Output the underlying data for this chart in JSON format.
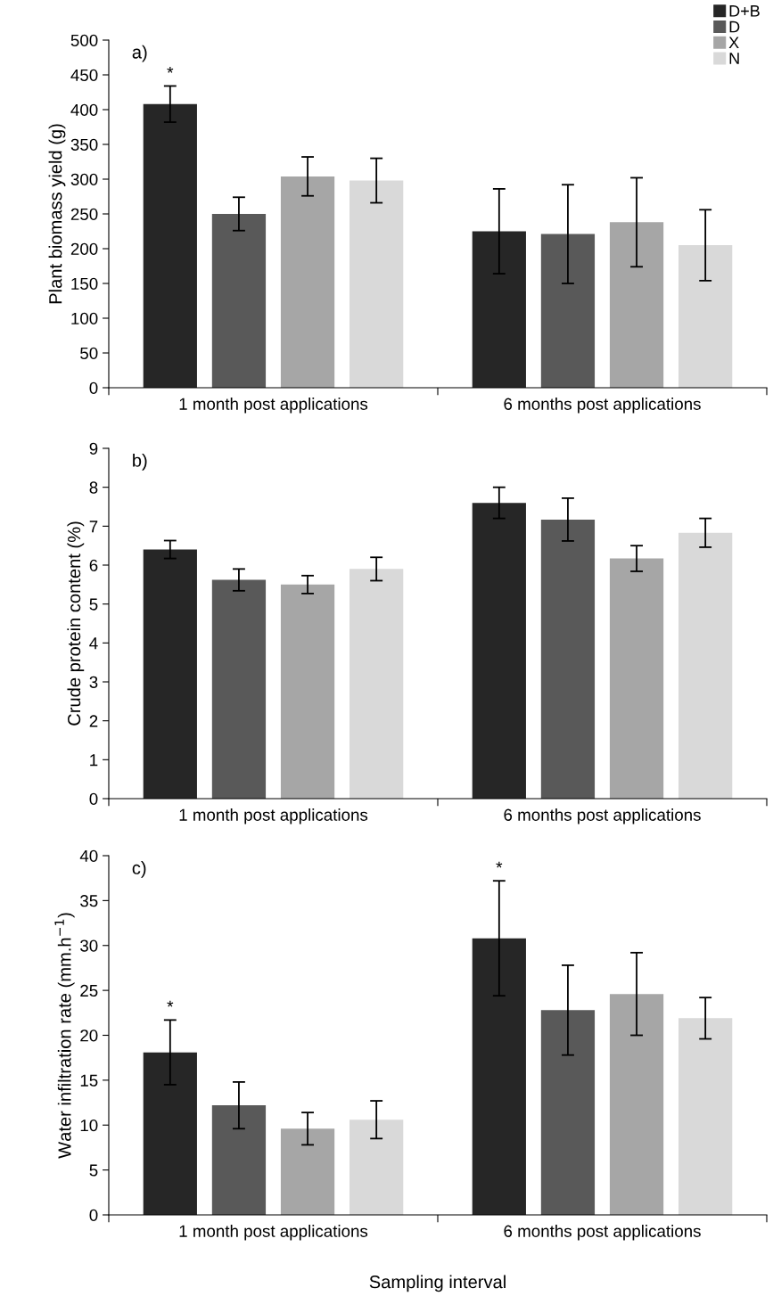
{
  "chart_data": [
    {
      "type": "bar",
      "ylabel": "Plant biomass yield (g)",
      "categories": [
        "1 month post applications",
        "6 months post applications"
      ],
      "ylim": [
        0,
        500
      ],
      "yticks": [
        0,
        50,
        100,
        150,
        200,
        250,
        300,
        350,
        400,
        450,
        500
      ],
      "legend": "top right",
      "grid": false,
      "series": [
        {
          "name": "D+B",
          "color": "#262626",
          "values": [
            408,
            225
          ],
          "errors": [
            26,
            61
          ]
        },
        {
          "name": "D",
          "color": "#595959",
          "values": [
            250,
            221
          ],
          "errors": [
            24,
            71
          ]
        },
        {
          "name": "X",
          "color": "#a6a6a6",
          "values": [
            304,
            238
          ],
          "errors": [
            28,
            64
          ]
        },
        {
          "name": "N",
          "color": "#d9d9d9",
          "values": [
            298,
            205
          ],
          "errors": [
            32,
            51
          ]
        }
      ],
      "annotations": [
        "a)",
        "*"
      ]
    },
    {
      "type": "bar",
      "ylabel": "Crude protein content (%)",
      "categories": [
        "1 month post applications",
        "6 months post applications"
      ],
      "ylim": [
        0,
        9
      ],
      "yticks": [
        0,
        1,
        2,
        3,
        4,
        5,
        6,
        7,
        8,
        9
      ],
      "legend": false,
      "grid": false,
      "series": [
        {
          "color": "#262626",
          "values": [
            6.4,
            7.6
          ],
          "errors": [
            0.23,
            0.4
          ]
        },
        {
          "color": "#595959",
          "values": [
            5.62,
            7.17
          ],
          "errors": [
            0.28,
            0.55
          ]
        },
        {
          "color": "#a6a6a6",
          "values": [
            5.5,
            6.17
          ],
          "errors": [
            0.23,
            0.33
          ]
        },
        {
          "color": "#d9d9d9",
          "values": [
            5.9,
            6.83
          ],
          "errors": [
            0.3,
            0.37
          ]
        }
      ],
      "annotations": [
        "b)"
      ]
    },
    {
      "type": "bar",
      "ylabel": "Water infiltration rate (mm.h$^{−1}$)",
      "xlabel": "Sampling interval",
      "categories": [
        "1 month post applications",
        "6 months post applications"
      ],
      "ylim": [
        0,
        40
      ],
      "yticks": [
        0,
        5,
        10,
        15,
        20,
        25,
        30,
        35,
        40
      ],
      "legend": false,
      "grid": false,
      "series": [
        {
          "color": "#262626",
          "values": [
            18.1,
            30.8
          ],
          "errors": [
            3.6,
            6.4
          ]
        },
        {
          "color": "#595959",
          "values": [
            12.2,
            22.8
          ],
          "errors": [
            2.6,
            5
          ]
        },
        {
          "color": "#a6a6a6",
          "values": [
            9.6,
            24.6
          ],
          "errors": [
            1.8,
            4.6
          ]
        },
        {
          "color": "#d9d9d9",
          "values": [
            10.6,
            21.9
          ],
          "errors": [
            2.1,
            2.3
          ]
        }
      ],
      "annotations": [
        "c)",
        "*",
        "*"
      ]
    }
  ]
}
